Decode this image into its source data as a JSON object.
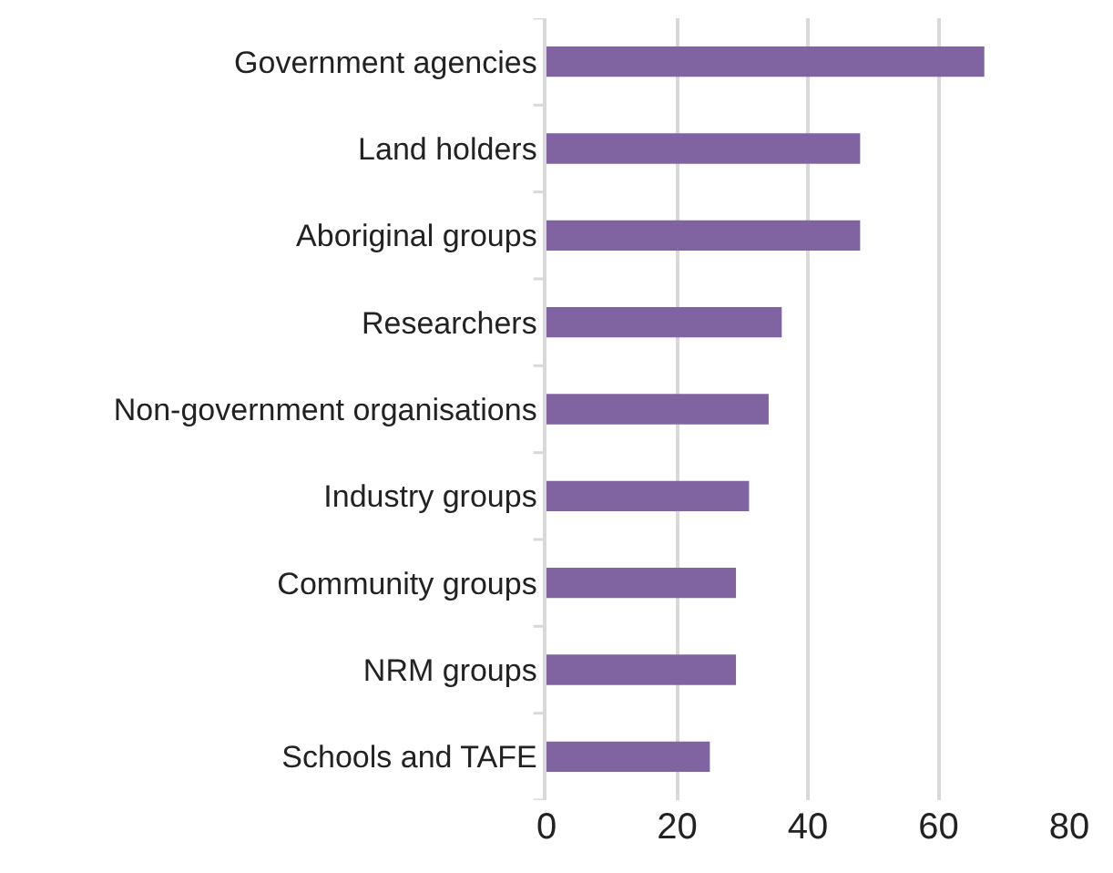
{
  "chart_data": {
    "type": "bar",
    "orientation": "horizontal",
    "categories": [
      "Government agencies",
      "Land holders",
      "Aboriginal groups",
      "Researchers",
      "Non-government organisations",
      "Industry groups",
      "Community groups",
      "NRM groups",
      "Schools and TAFE"
    ],
    "values": [
      67,
      48,
      48,
      36,
      34,
      31,
      29,
      29,
      25
    ],
    "color": "#8064a2",
    "xlim": [
      0,
      80
    ],
    "xticks": [
      0,
      20,
      40,
      60,
      80
    ],
    "grid": "x",
    "legend": false
  }
}
